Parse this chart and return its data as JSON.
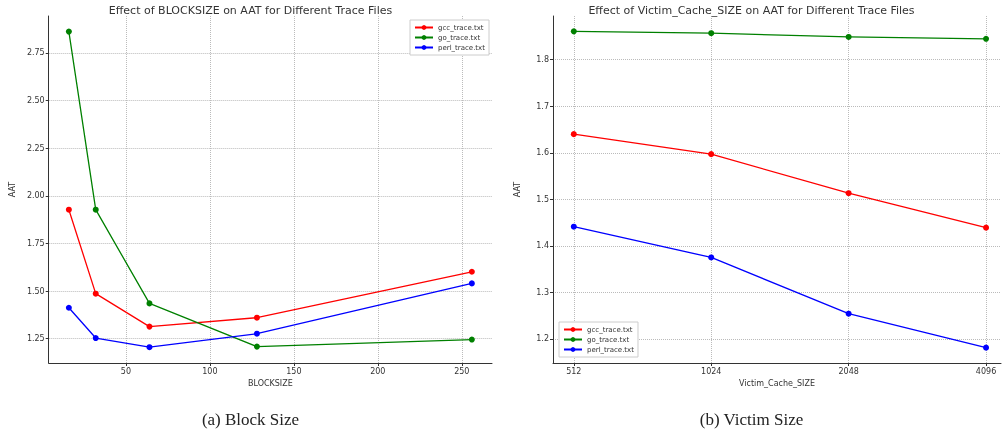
{
  "chart_data": [
    {
      "type": "line",
      "title": "Effect of BLOCKSIZE on AAT for Different Trace Files",
      "xlabel": "BLOCKSIZE",
      "ylabel": "AAT",
      "x": [
        16,
        32,
        64,
        128,
        256
      ],
      "series": [
        {
          "name": "gcc_trace.txt",
          "color": "#ff0000",
          "values": [
            1.927,
            1.486,
            1.313,
            1.36,
            1.601
          ]
        },
        {
          "name": "go_trace.txt",
          "color": "#008000",
          "values": [
            2.862,
            1.927,
            1.435,
            1.208,
            1.245
          ]
        },
        {
          "name": "perl_trace.txt",
          "color": "#0000ff",
          "values": [
            1.412,
            1.253,
            1.205,
            1.276,
            1.54
          ]
        }
      ],
      "xlim": [
        4,
        268
      ],
      "xticks": [
        50,
        100,
        150,
        200,
        250
      ],
      "ylim": [
        1.122,
        2.944
      ],
      "yticks": [
        1.25,
        {
          "value": 1.5,
          "label": "1.50"
        },
        1.75,
        {
          "value": 2,
          "label": "2.00"
        },
        2.25,
        {
          "value": 2.5,
          "label": "2.50"
        },
        2.75
      ],
      "grid": true,
      "legend": "top right",
      "marker": "circle",
      "line_style": "solid",
      "annotations": [
        "(a) Block Size"
      ]
    },
    {
      "type": "line",
      "title": "Effect of Victim_Cache_SIZE on AAT for Different Trace Files",
      "xlabel": "Victim_Cache_SIZE",
      "ylabel": "AAT",
      "x": [
        512,
        1024,
        2048,
        4096
      ],
      "series": [
        {
          "name": "gcc_trace.txt",
          "color": "#ff0000",
          "values": [
            1.64,
            1.597,
            1.513,
            1.439
          ]
        },
        {
          "name": "go_trace.txt",
          "color": "#008000",
          "values": [
            1.861,
            1.857,
            1.849,
            1.845
          ]
        },
        {
          "name": "perl_trace.txt",
          "color": "#0000ff",
          "values": [
            1.441,
            1.375,
            1.254,
            1.181
          ]
        }
      ],
      "log": "x",
      "xlim": [
        461,
        4417
      ],
      "xticks": [
        512,
        1024,
        2048,
        4096
      ],
      "ylim": [
        1.148,
        1.894
      ],
      "yticks": [
        1.2,
        1.3,
        1.4,
        1.5,
        1.6,
        1.7,
        1.8
      ],
      "grid": true,
      "legend": "bottom left",
      "marker": "circle",
      "line_style": "solid",
      "annotations": [
        "(b) Victim Size"
      ]
    }
  ]
}
